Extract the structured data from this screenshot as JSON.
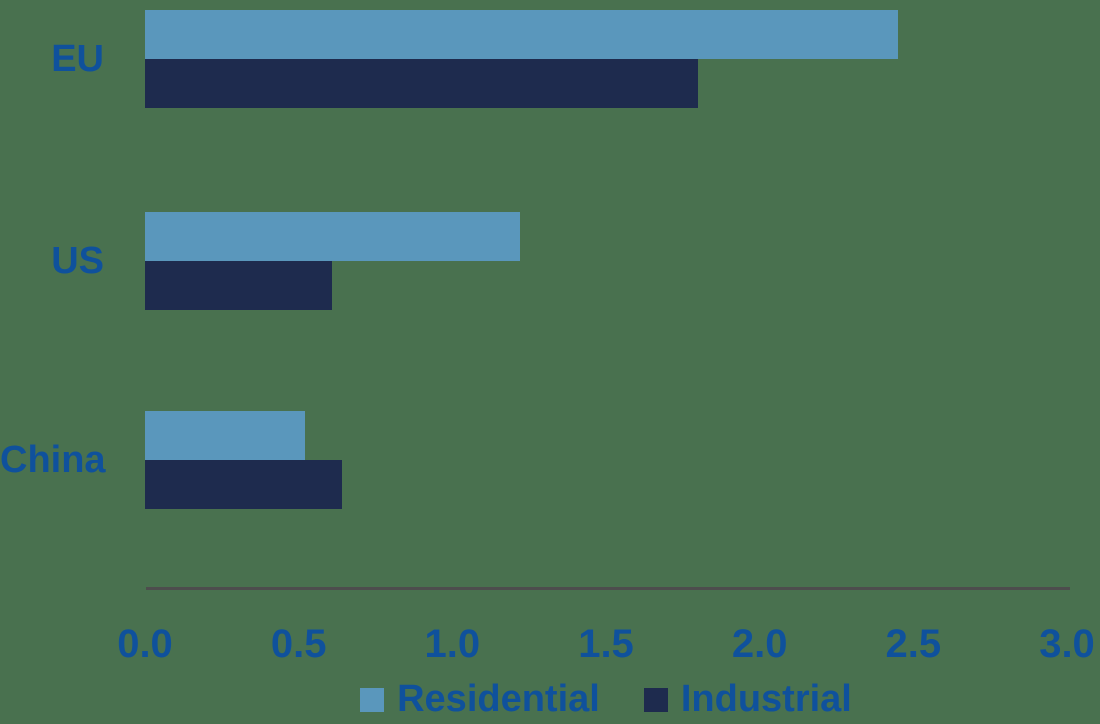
{
  "chart_data": {
    "type": "bar",
    "orientation": "horizontal",
    "title": "",
    "xlabel": "",
    "ylabel": "",
    "categories": [
      "EU",
      "US",
      "China"
    ],
    "series": [
      {
        "name": "Residential",
        "color": "#5A97BC",
        "values": [
          2.45,
          1.22,
          0.52
        ]
      },
      {
        "name": "Industrial",
        "color": "#1E2B4E",
        "values": [
          1.8,
          0.61,
          0.64
        ]
      }
    ],
    "xlim": [
      0.0,
      3.0
    ],
    "x_tick_labels": [
      "0.0",
      "0.5",
      "1.0",
      "1.5",
      "2.0",
      "2.5",
      "3.0"
    ],
    "x_tick_values": [
      0,
      0.5,
      1,
      1.5,
      2,
      2.5,
      3
    ],
    "grid": false,
    "legend_position": "bottom"
  },
  "colors": {
    "background": "#49714F",
    "text": "#0F519C",
    "axis_line": "#4D4D4D"
  }
}
